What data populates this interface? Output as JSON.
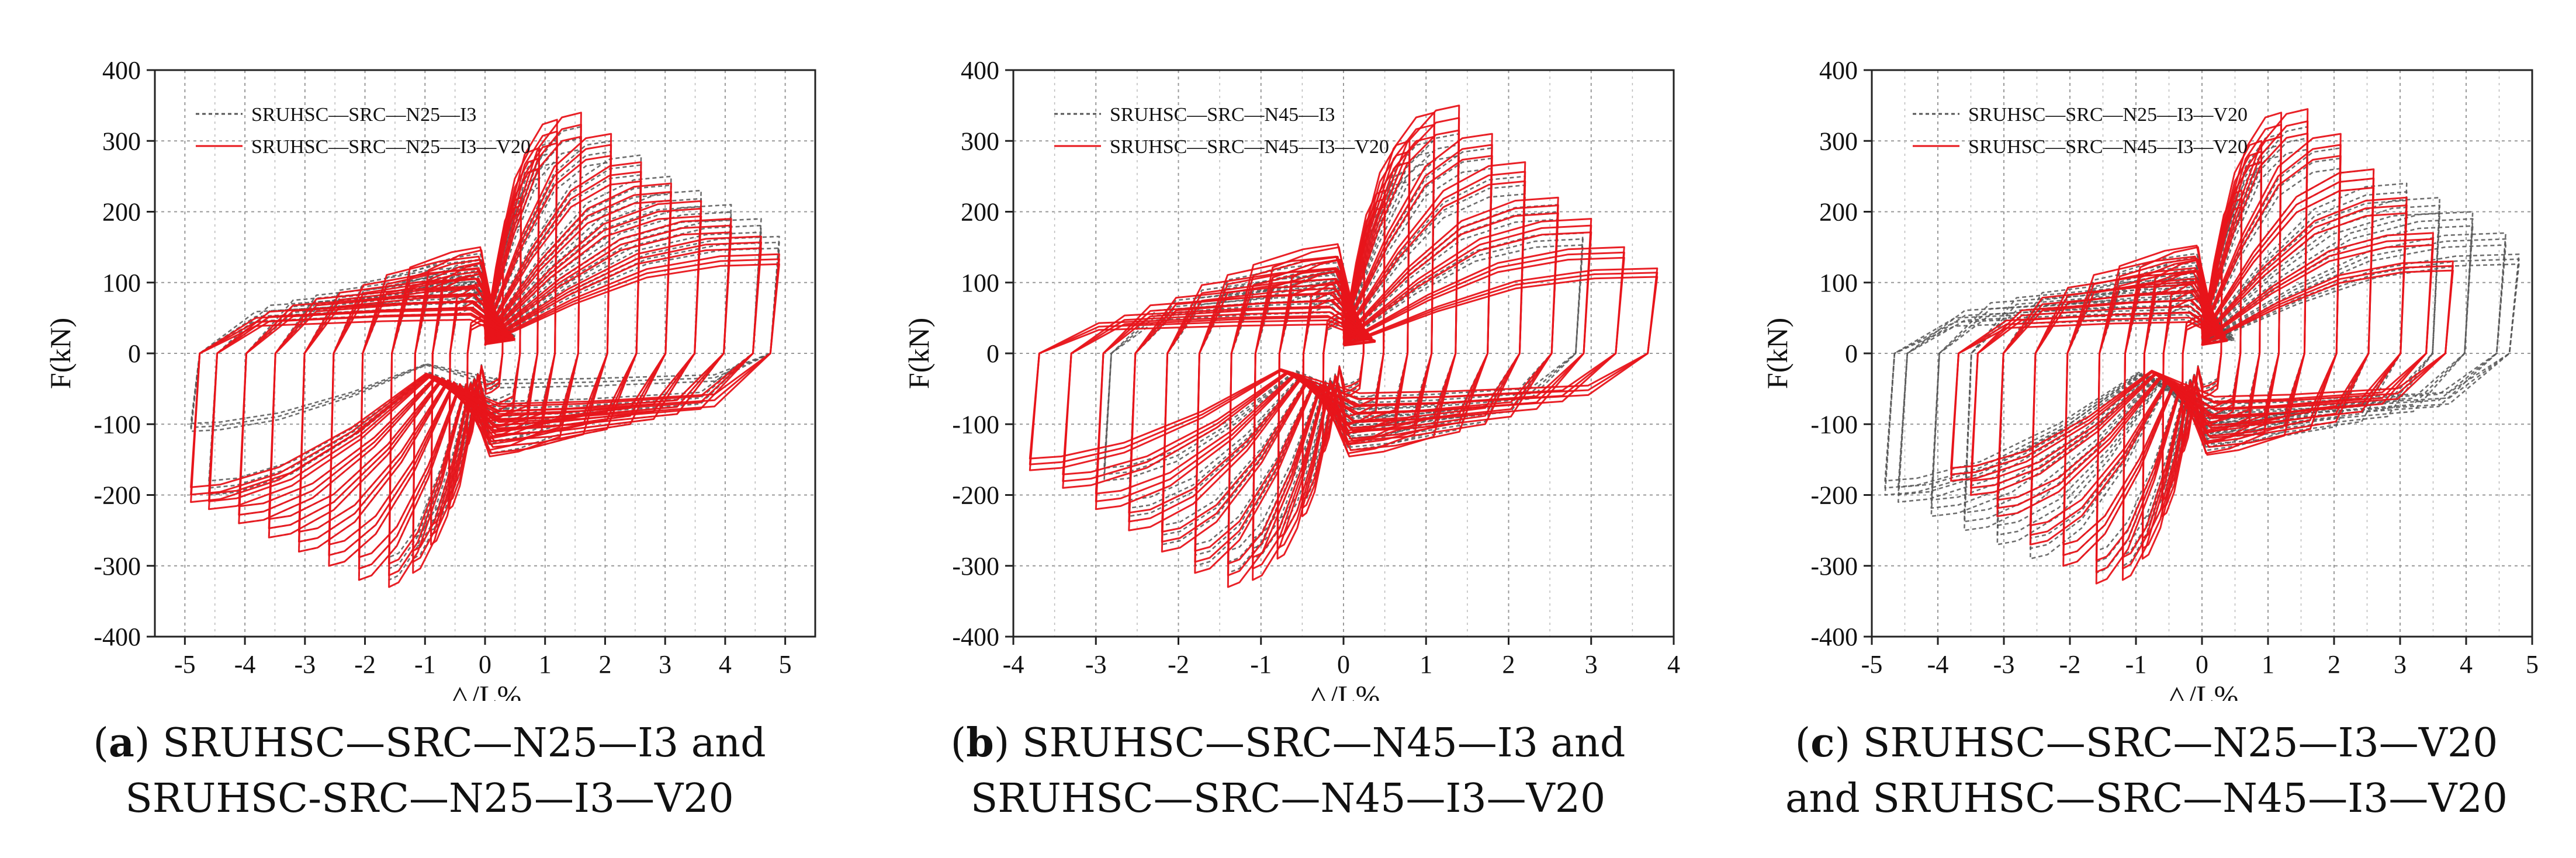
{
  "chart_data": [
    {
      "type": "line",
      "panel_tag": "a",
      "caption_rest": "SRUHSC—SRC—N25—I3 and SRUHSC-SRC—N25—I3—V20",
      "xlabel": "△/L%",
      "ylabel": "F(kN)",
      "xlim": [
        -5.5,
        5.5
      ],
      "ylim": [
        -400,
        400
      ],
      "xticks": [
        -5,
        -4,
        -3,
        -2,
        -1,
        0,
        1,
        2,
        3,
        4,
        5
      ],
      "yticks": [
        -400,
        -300,
        -200,
        -100,
        0,
        100,
        200,
        300,
        400
      ],
      "grid": true,
      "legend_position": "top-left",
      "series": [
        {
          "name": "SRUHSC—SRC—N25—I3",
          "style": "dashed",
          "color": "#555555",
          "peaks_x": [
            0.3,
            0.6,
            0.9,
            1.2,
            1.6,
            2.1,
            2.6,
            3.1,
            3.6,
            4.1,
            4.6,
            4.9
          ],
          "peaks_pos": [
            120,
            200,
            260,
            300,
            320,
            300,
            280,
            250,
            230,
            210,
            190,
            165
          ],
          "peaks_neg": [
            -120,
            -200,
            -250,
            -290,
            -320,
            -320,
            -300,
            -280,
            -260,
            -240,
            -200,
            -110
          ]
        },
        {
          "name": "SRUHSC—SRC—N25—I3—V20",
          "style": "solid",
          "color": "#e8141a",
          "peaks_x": [
            0.3,
            0.6,
            0.9,
            1.2,
            1.6,
            2.1,
            2.6,
            3.1,
            3.6,
            4.1,
            4.6,
            4.9
          ],
          "peaks_pos": [
            120,
            220,
            290,
            330,
            340,
            310,
            270,
            240,
            215,
            190,
            165,
            140
          ],
          "peaks_neg": [
            -130,
            -220,
            -270,
            -310,
            -330,
            -320,
            -300,
            -280,
            -260,
            -240,
            -220,
            -210
          ]
        }
      ]
    },
    {
      "type": "line",
      "panel_tag": "b",
      "caption_rest": "SRUHSC—SRC—N45—I3 and SRUHSC—SRC—N45—I3—V20",
      "xlabel": "△/L%",
      "ylabel": "F(kN)",
      "xlim": [
        -4,
        4
      ],
      "ylim": [
        -400,
        400
      ],
      "xticks": [
        -4,
        -3,
        -2,
        -1,
        0,
        1,
        2,
        3,
        4
      ],
      "yticks": [
        -400,
        -300,
        -200,
        -100,
        0,
        100,
        200,
        300,
        400
      ],
      "grid": true,
      "legend_position": "top-left",
      "series": [
        {
          "name": "SRUHSC—SRC—N45—I3",
          "style": "dashed",
          "color": "#555555",
          "peaks_x": [
            0.25,
            0.5,
            0.8,
            1.1,
            1.4,
            1.8,
            2.2,
            2.6,
            2.9
          ],
          "peaks_pos": [
            120,
            210,
            270,
            300,
            310,
            290,
            250,
            210,
            170
          ],
          "peaks_neg": [
            -130,
            -210,
            -260,
            -290,
            -310,
            -300,
            -270,
            -230,
            -180
          ]
        },
        {
          "name": "SRUHSC—SRC—N45—I3—V20",
          "style": "solid",
          "color": "#e8141a",
          "peaks_x": [
            0.25,
            0.5,
            0.8,
            1.1,
            1.4,
            1.8,
            2.2,
            2.6,
            3.0,
            3.4,
            3.8
          ],
          "peaks_pos": [
            130,
            230,
            300,
            340,
            350,
            310,
            270,
            220,
            190,
            150,
            120
          ],
          "peaks_neg": [
            -140,
            -230,
            -290,
            -320,
            -330,
            -310,
            -280,
            -250,
            -220,
            -190,
            -165
          ]
        }
      ]
    },
    {
      "type": "line",
      "panel_tag": "c",
      "caption_rest": "SRUHSC—SRC—N25—I3—V20 and SRUHSC—SRC—N45—I3—V20",
      "xlabel": "△/L%",
      "ylabel": "F(kN)",
      "xlim": [
        -5,
        5
      ],
      "ylim": [
        -400,
        400
      ],
      "xticks": [
        -5,
        -4,
        -3,
        -2,
        -1,
        0,
        1,
        2,
        3,
        4,
        5
      ],
      "yticks": [
        -400,
        -300,
        -200,
        -100,
        0,
        100,
        200,
        300,
        400
      ],
      "grid": true,
      "legend_position": "top-left",
      "series": [
        {
          "name": "SRUHSC—SRC—N25—I3—V20",
          "style": "dashed",
          "color": "#555555",
          "peaks_x": [
            0.3,
            0.6,
            0.9,
            1.2,
            1.6,
            2.1,
            2.6,
            3.1,
            3.6,
            4.1,
            4.6,
            4.8
          ],
          "peaks_pos": [
            120,
            210,
            270,
            310,
            320,
            290,
            260,
            240,
            220,
            200,
            170,
            140
          ],
          "peaks_neg": [
            -130,
            -210,
            -260,
            -300,
            -310,
            -300,
            -290,
            -270,
            -250,
            -230,
            -210,
            -200
          ]
        },
        {
          "name": "SRUHSC—SRC—N45—I3—V20",
          "style": "solid",
          "color": "#e8141a",
          "peaks_x": [
            0.3,
            0.6,
            0.9,
            1.2,
            1.6,
            2.1,
            2.6,
            3.1,
            3.5,
            3.8
          ],
          "peaks_pos": [
            120,
            230,
            300,
            340,
            345,
            310,
            260,
            220,
            170,
            130
          ],
          "peaks_neg": [
            -140,
            -230,
            -290,
            -320,
            -325,
            -300,
            -270,
            -230,
            -200,
            -180
          ]
        }
      ]
    }
  ]
}
